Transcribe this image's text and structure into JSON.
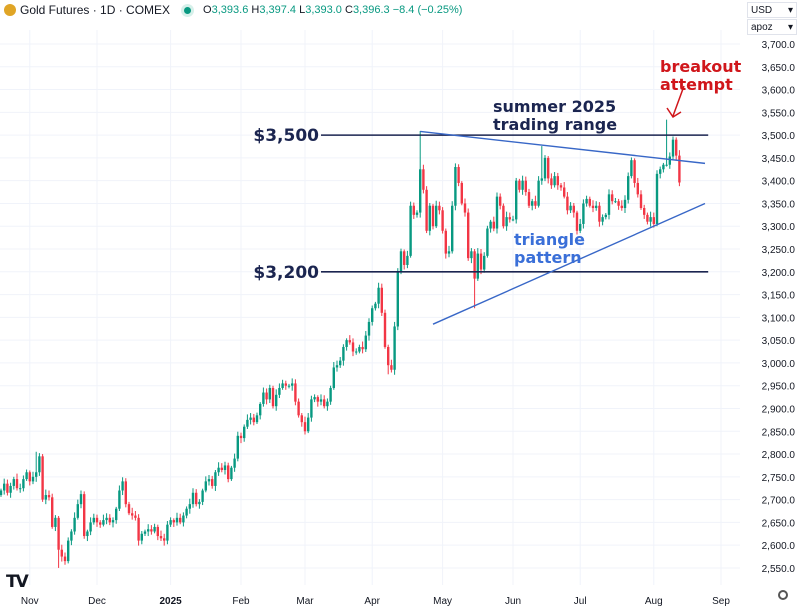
{
  "header": {
    "symbol": "Gold Futures · 1D · COMEX",
    "o_label": "O",
    "o": "3,393.6",
    "h_label": "H",
    "h": "3,397.4",
    "l_label": "L",
    "l": "3,393.0",
    "c_label": "C",
    "c": "3,396.3",
    "change": "−8.4 (−0.25%)"
  },
  "controls": {
    "currency": "USD",
    "unit": "apoz",
    "chevron": "▾"
  },
  "colors": {
    "up": "#089981",
    "down": "#f23645",
    "level_line": "#1b2550",
    "triangle": "#3867c7",
    "annotation_red": "#d0161b",
    "annotation_blue": "#3a6fd8",
    "annotation_dark": "#1b2550"
  },
  "chart_data": {
    "type": "candlestick",
    "start_date": "2024-10-21",
    "y_ticks": [
      "3,700.0",
      "3,650.0",
      "3,600.0",
      "3,550.0",
      "3,500.0",
      "3,450.0",
      "3,400.0",
      "3,350.0",
      "3,300.0",
      "3,250.0",
      "3,200.0",
      "3,150.0",
      "3,100.0",
      "3,050.0",
      "3,000.0",
      "2,950.0",
      "2,900.0",
      "2,850.0",
      "2,800.0",
      "2,750.0",
      "2,700.0",
      "2,650.0",
      "2,600.0",
      "2,550.0"
    ],
    "ylim": [
      2550,
      3700
    ],
    "x_ticks": [
      {
        "label": "Nov",
        "date": "2024-11-01",
        "bold": false
      },
      {
        "label": "Dec",
        "date": "2024-12-02",
        "bold": false
      },
      {
        "label": "2025",
        "date": "2025-01-02",
        "bold": true
      },
      {
        "label": "Feb",
        "date": "2025-02-03",
        "bold": false
      },
      {
        "label": "Mar",
        "date": "2025-03-03",
        "bold": false
      },
      {
        "label": "Apr",
        "date": "2025-04-01",
        "bold": false
      },
      {
        "label": "May",
        "date": "2025-05-01",
        "bold": false
      },
      {
        "label": "Jun",
        "date": "2025-06-02",
        "bold": false
      },
      {
        "label": "Jul",
        "date": "2025-07-01",
        "bold": false
      },
      {
        "label": "Aug",
        "date": "2025-08-01",
        "bold": false
      },
      {
        "label": "Sep",
        "date": "2025-09-01",
        "bold": false
      }
    ],
    "grid": true,
    "closes": [
      2720,
      2735,
      2715,
      2730,
      2745,
      2725,
      2725,
      2745,
      2760,
      2740,
      2750,
      2760,
      2795,
      2700,
      2710,
      2705,
      2640,
      2660,
      2590,
      2575,
      2565,
      2610,
      2630,
      2660,
      2690,
      2712,
      2620,
      2630,
      2650,
      2660,
      2650,
      2645,
      2655,
      2660,
      2650,
      2655,
      2680,
      2720,
      2740,
      2690,
      2670,
      2665,
      2660,
      2610,
      2625,
      2630,
      2635,
      2630,
      2640,
      2620,
      2615,
      2610,
      2645,
      2655,
      2650,
      2660,
      2650,
      2665,
      2680,
      2690,
      2715,
      2690,
      2695,
      2720,
      2740,
      2745,
      2730,
      2760,
      2770,
      2765,
      2775,
      2745,
      2770,
      2790,
      2840,
      2835,
      2860,
      2875,
      2880,
      2870,
      2885,
      2910,
      2935,
      2920,
      2945,
      2905,
      2930,
      2945,
      2955,
      2950,
      2950,
      2955,
      2915,
      2885,
      2870,
      2850,
      2880,
      2920,
      2925,
      2915,
      2920,
      2905,
      2915,
      2945,
      2990,
      2995,
      3005,
      3035,
      3050,
      3045,
      3025,
      3025,
      3035,
      3030,
      3060,
      3090,
      3120,
      3130,
      3165,
      3110,
      3035,
      2995,
      2985,
      3080,
      3200,
      3245,
      3215,
      3235,
      3345,
      3325,
      3330,
      3425,
      3380,
      3290,
      3345,
      3300,
      3345,
      3335,
      3290,
      3240,
      3245,
      3345,
      3430,
      3395,
      3350,
      3330,
      3230,
      3245,
      3185,
      3240,
      3205,
      3235,
      3295,
      3310,
      3295,
      3365,
      3345,
      3300,
      3320,
      3315,
      3315,
      3400,
      3380,
      3400,
      3375,
      3345,
      3355,
      3345,
      3400,
      3405,
      3450,
      3405,
      3390,
      3410,
      3390,
      3385,
      3365,
      3335,
      3345,
      3330,
      3290,
      3305,
      3350,
      3360,
      3345,
      3340,
      3345,
      3310,
      3320,
      3325,
      3370,
      3355,
      3355,
      3345,
      3340,
      3358,
      3410,
      3445,
      3395,
      3370,
      3340,
      3325,
      3310,
      3320,
      3305,
      3415,
      3425,
      3435,
      3435,
      3453,
      3490,
      3455,
      3396
    ],
    "extremes": [
      {
        "date": "2024-11-14",
        "low": 2550
      },
      {
        "date": "2024-11-05",
        "high": 2805
      },
      {
        "date": "2025-04-08",
        "low": 2975
      },
      {
        "date": "2025-04-22",
        "high": 3509
      },
      {
        "date": "2025-05-15",
        "low": 3120
      },
      {
        "date": "2025-06-13",
        "high": 3476
      },
      {
        "date": "2025-08-07",
        "high": 3534
      }
    ],
    "levels": [
      {
        "label": "$3,500",
        "price": 3500,
        "from": "2025-03-10",
        "to": "2025-08-26"
      },
      {
        "label": "$3,200",
        "price": 3200,
        "from": "2025-03-10",
        "to": "2025-08-26"
      }
    ],
    "trendlines": [
      {
        "name": "upper",
        "from": {
          "date": "2025-04-22",
          "price": 3508
        },
        "to": {
          "date": "2025-08-25",
          "price": 3438
        }
      },
      {
        "name": "lower",
        "from": {
          "date": "2025-04-28",
          "price": 3085
        },
        "to": {
          "date": "2025-08-25",
          "price": 3350
        }
      }
    ],
    "annotations": {
      "range_line1": "summer 2025",
      "range_line2": "trading range",
      "triangle_line1": "triangle",
      "triangle_line2": "pattern",
      "breakout_line1": "breakout",
      "breakout_line2": "attempt"
    }
  }
}
